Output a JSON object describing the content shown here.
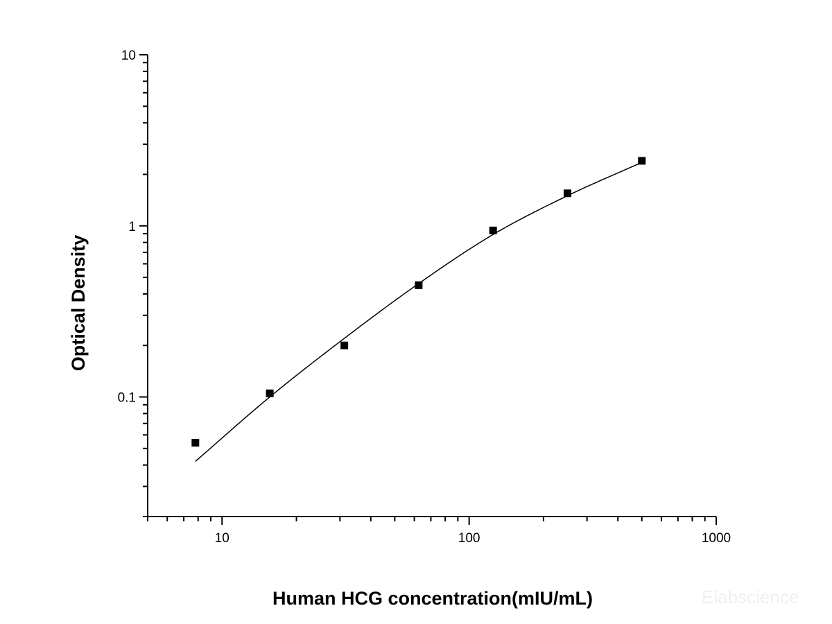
{
  "chart_data": {
    "type": "scatter",
    "title": "",
    "xlabel": "Human HCG concentration(mIU/mL)",
    "ylabel": "Optical Density",
    "x_scale": "log",
    "y_scale": "log",
    "xlim": [
      5,
      1000
    ],
    "ylim": [
      0.02,
      10
    ],
    "x_ticks": [
      {
        "value": 10,
        "label": "10"
      },
      {
        "value": 100,
        "label": "100"
      },
      {
        "value": 1000,
        "label": "1000"
      }
    ],
    "y_ticks": [
      {
        "value": 0.1,
        "label": "0.1"
      },
      {
        "value": 1,
        "label": "1"
      },
      {
        "value": 10,
        "label": "10"
      }
    ],
    "grid": false,
    "legend": "none",
    "series": [
      {
        "type": "scatter",
        "marker": "square",
        "color": "#000000",
        "x": [
          7.8,
          15.6,
          31.25,
          62.5,
          125,
          250,
          500
        ],
        "y": [
          0.054,
          0.105,
          0.2,
          0.45,
          0.94,
          1.55,
          2.4
        ]
      },
      {
        "type": "line",
        "color": "#000000",
        "x": [
          7.8,
          15.6,
          31.25,
          62.5,
          125,
          250,
          500
        ],
        "y": [
          0.042,
          0.1,
          0.22,
          0.46,
          0.89,
          1.5,
          2.35
        ]
      }
    ]
  },
  "watermark": "Elabscience"
}
